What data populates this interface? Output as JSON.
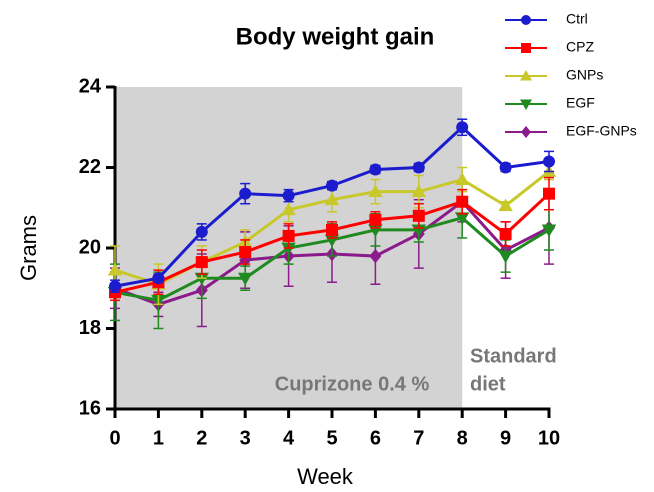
{
  "chart_data": {
    "type": "line",
    "title": "Body weight gain",
    "x_label": "Week",
    "y_label": "Grams",
    "x": [
      0,
      1,
      2,
      3,
      4,
      5,
      6,
      7,
      8,
      9,
      10
    ],
    "xlim": [
      0,
      10
    ],
    "xticks": [
      0,
      1,
      2,
      3,
      4,
      5,
      6,
      7,
      8,
      9,
      10
    ],
    "ylim": [
      16,
      24
    ],
    "yticks": [
      16,
      18,
      20,
      22,
      24
    ],
    "shaded_region": {
      "xlim": [
        0,
        8
      ],
      "color": "#d3d3d3"
    },
    "annotations": [
      "Cuprizone 0.4 %",
      "Standard",
      "diet"
    ],
    "legend": "upper right",
    "series": [
      {
        "name": "Ctrl",
        "color": "#1c1ccf",
        "marker": "circle",
        "values": [
          19.05,
          19.25,
          20.4,
          21.35,
          21.3,
          21.55,
          21.95,
          22.0,
          23.0,
          22.0,
          22.15
        ],
        "errors": [
          0.15,
          0.1,
          0.2,
          0.25,
          0.15,
          0.1,
          0.1,
          0.1,
          0.2,
          0.1,
          0.25
        ]
      },
      {
        "name": "CPZ",
        "color": "#ff0000",
        "marker": "square",
        "values": [
          18.9,
          19.15,
          19.65,
          19.9,
          20.3,
          20.45,
          20.7,
          20.8,
          21.15,
          20.35,
          21.35
        ],
        "errors": [
          0.2,
          0.3,
          0.3,
          0.3,
          0.3,
          0.2,
          0.2,
          0.3,
          0.3,
          0.3,
          0.4
        ]
      },
      {
        "name": "GNPs",
        "color": "#c8c82a",
        "marker": "triangle-up",
        "values": [
          19.45,
          19.1,
          19.65,
          20.15,
          20.95,
          21.2,
          21.4,
          21.4,
          21.7,
          21.05,
          21.9
        ],
        "errors": [
          0.6,
          0.5,
          0.4,
          0.3,
          0.3,
          0.3,
          0.3,
          0.4,
          0.3,
          0.1,
          0.2
        ]
      },
      {
        "name": "EGF",
        "color": "#1f8a1f",
        "marker": "triangle-down",
        "values": [
          18.9,
          18.7,
          19.25,
          19.25,
          20.0,
          20.2,
          20.45,
          20.45,
          20.75,
          19.8,
          20.45
        ],
        "errors": [
          0.7,
          0.7,
          0.5,
          0.3,
          0.4,
          0.4,
          0.4,
          0.3,
          0.5,
          0.4,
          0.5
        ]
      },
      {
        "name": "EGF-GNPs",
        "color": "#8b1a8b",
        "marker": "diamond",
        "values": [
          19.0,
          18.6,
          18.95,
          19.7,
          19.8,
          19.85,
          19.8,
          20.35,
          21.15,
          19.95,
          20.5
        ],
        "errors": [
          0.5,
          0.3,
          0.9,
          0.7,
          0.75,
          0.7,
          0.7,
          0.85,
          0.5,
          0.7,
          0.9
        ]
      }
    ]
  }
}
